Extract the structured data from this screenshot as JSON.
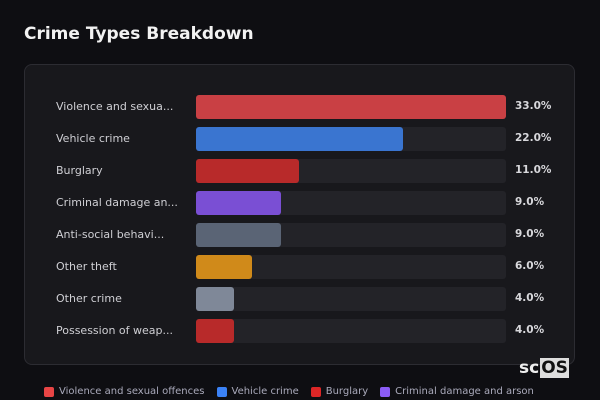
{
  "chart_data": {
    "type": "bar",
    "orientation": "horizontal",
    "title": "Crime Types Breakdown",
    "categories": [
      "Violence and sexua...",
      "Vehicle crime",
      "Burglary",
      "Criminal damage an...",
      "Anti-social behavi...",
      "Other theft",
      "Other crime",
      "Possession of weap..."
    ],
    "values": [
      33.0,
      22.0,
      11.0,
      9.0,
      9.0,
      6.0,
      4.0,
      4.0
    ],
    "value_labels": [
      "33.0%",
      "22.0%",
      "11.0%",
      "9.0%",
      "9.0%",
      "6.0%",
      "4.0%",
      "4.0%"
    ],
    "colors": [
      "#c94044",
      "#3a75d0",
      "#b82a2a",
      "#7a4fd4",
      "#5a6475",
      "#d08a1a",
      "#7f8898",
      "#b82a2a"
    ],
    "xlim": [
      0,
      33
    ],
    "legend": [
      {
        "label": "Violence and sexual offences",
        "color": "#e84545"
      },
      {
        "label": "Vehicle crime",
        "color": "#3b82f6"
      },
      {
        "label": "Burglary",
        "color": "#dc2626"
      },
      {
        "label": "Criminal damage and arson",
        "color": "#8b5cf6"
      }
    ],
    "legend_position": "bottom"
  },
  "logo": {
    "pre": "sc",
    "box": "OS"
  }
}
